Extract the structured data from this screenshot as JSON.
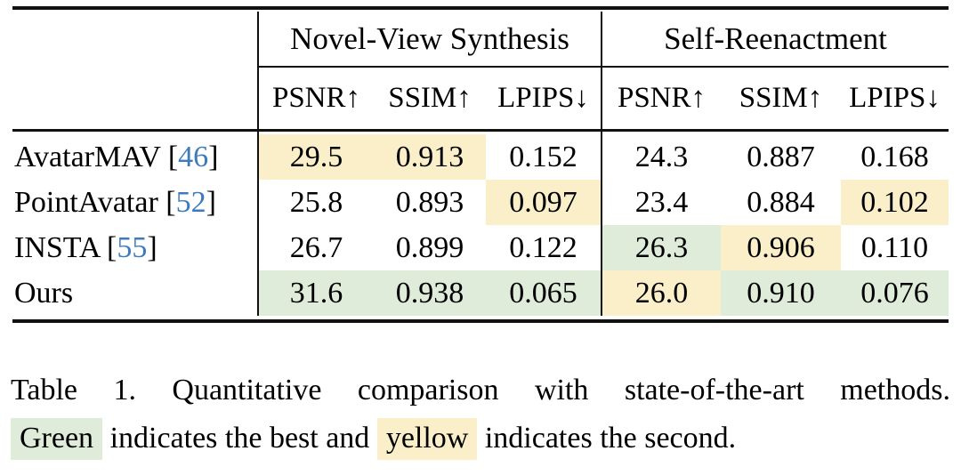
{
  "table": {
    "groups": [
      {
        "label": "Novel-View Synthesis"
      },
      {
        "label": "Self-Reenactment"
      }
    ],
    "metrics": [
      "PSNR↑",
      "SSIM↑",
      "LPIPS↓",
      "PSNR↑",
      "SSIM↑",
      "LPIPS↓"
    ],
    "rows": [
      {
        "name": "AvatarMAV",
        "cite_open": "[",
        "cite": "46",
        "cite_close": "]",
        "cells": [
          {
            "v": "29.5",
            "hl": "second"
          },
          {
            "v": "0.913",
            "hl": "second"
          },
          {
            "v": "0.152",
            "hl": null
          },
          {
            "v": "24.3",
            "hl": null
          },
          {
            "v": "0.887",
            "hl": null
          },
          {
            "v": "0.168",
            "hl": null
          }
        ]
      },
      {
        "name": "PointAvatar",
        "cite_open": "[",
        "cite": "52",
        "cite_close": "]",
        "cells": [
          {
            "v": "25.8",
            "hl": null
          },
          {
            "v": "0.893",
            "hl": null
          },
          {
            "v": "0.097",
            "hl": "second"
          },
          {
            "v": "23.4",
            "hl": null
          },
          {
            "v": "0.884",
            "hl": null
          },
          {
            "v": "0.102",
            "hl": "second"
          }
        ]
      },
      {
        "name": "INSTA",
        "cite_open": "[",
        "cite": "55",
        "cite_close": "]",
        "cells": [
          {
            "v": "26.7",
            "hl": null
          },
          {
            "v": "0.899",
            "hl": null
          },
          {
            "v": "0.122",
            "hl": null
          },
          {
            "v": "26.3",
            "hl": "best"
          },
          {
            "v": "0.906",
            "hl": "second"
          },
          {
            "v": "0.110",
            "hl": null
          }
        ]
      },
      {
        "name": "Ours",
        "cells": [
          {
            "v": "31.6",
            "hl": "best"
          },
          {
            "v": "0.938",
            "hl": "best"
          },
          {
            "v": "0.065",
            "hl": "best"
          },
          {
            "v": "26.0",
            "hl": "second"
          },
          {
            "v": "0.910",
            "hl": "best"
          },
          {
            "v": "0.076",
            "hl": "best"
          }
        ]
      }
    ]
  },
  "caption": {
    "line1": "Table 1.  Quantitative comparison with state-of-the-art methods.",
    "line2_parts": [
      {
        "text": "Green",
        "hl": "best"
      },
      {
        "text": " indicates the best and "
      },
      {
        "text": "yellow",
        "hl": "second"
      },
      {
        "text": " indicates the second."
      }
    ]
  },
  "colors": {
    "best_highlight": "#dfecd9",
    "second_highlight": "#fbefc9",
    "citation_blue": "#3e7bbd"
  }
}
